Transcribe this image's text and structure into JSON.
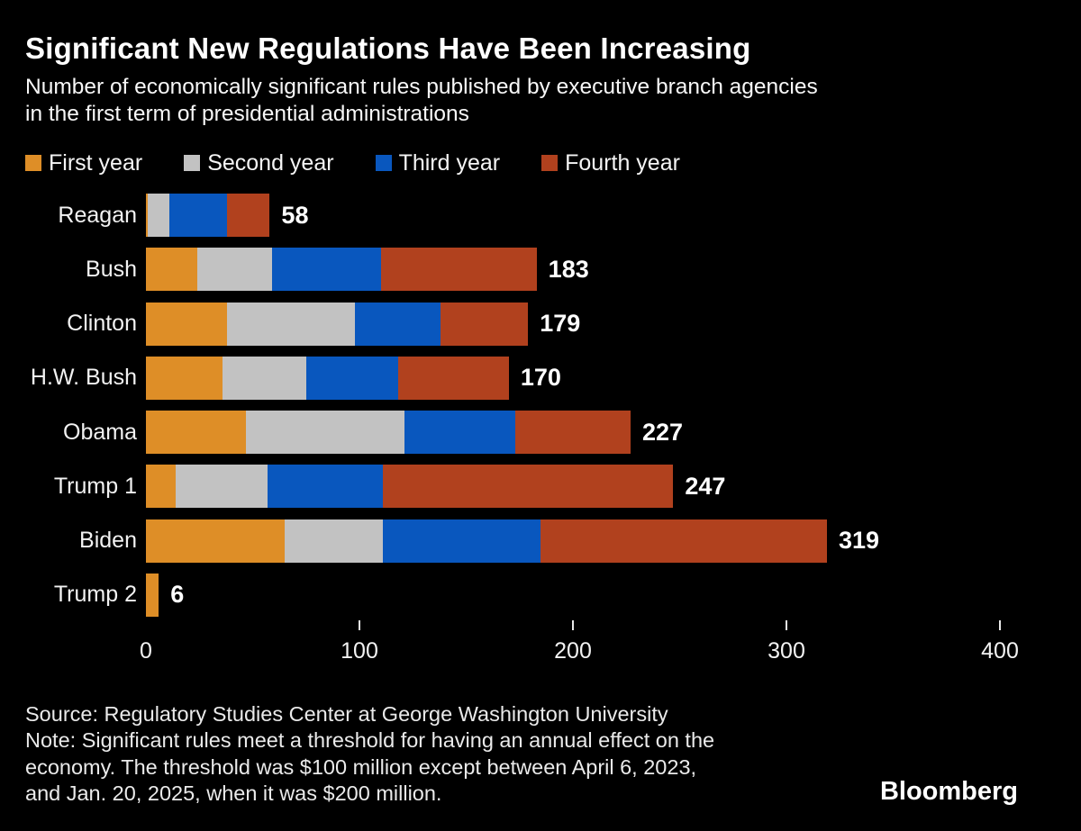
{
  "header": {
    "title": "Significant New Regulations Have Been Increasing",
    "subtitle": [
      "Number of economically significant rules published by executive branch agencies",
      "in the first term of presidential administrations"
    ]
  },
  "legend": [
    {
      "label": "First year",
      "color": "#de8e27"
    },
    {
      "label": "Second year",
      "color": "#c2c2c2"
    },
    {
      "label": "Third year",
      "color": "#0957be"
    },
    {
      "label": "Fourth year",
      "color": "#b1411e"
    }
  ],
  "chart_data": {
    "type": "bar",
    "orientation": "horizontal",
    "stacked": true,
    "title": "Significant New Regulations Have Been Increasing",
    "subtitle": "Number of economically significant rules published by executive branch agencies in the first term of presidential administrations",
    "categories": [
      "Reagan",
      "Bush",
      "Clinton",
      "H.W. Bush",
      "Obama",
      "Trump 1",
      "Biden",
      "Trump 2"
    ],
    "series": [
      {
        "name": "First year",
        "color": "#de8e27",
        "values": [
          1,
          24,
          38,
          36,
          47,
          14,
          65,
          6
        ]
      },
      {
        "name": "Second year",
        "color": "#c2c2c2",
        "values": [
          10,
          35,
          60,
          39,
          74,
          43,
          46,
          0
        ]
      },
      {
        "name": "Third year",
        "color": "#0957be",
        "values": [
          27,
          51,
          40,
          43,
          52,
          54,
          74,
          0
        ]
      },
      {
        "name": "Fourth year",
        "color": "#b1411e",
        "values": [
          20,
          73,
          41,
          52,
          54,
          136,
          134,
          0
        ]
      }
    ],
    "totals": [
      58,
      183,
      179,
      170,
      227,
      247,
      319,
      6
    ],
    "x_axis": {
      "ticks": [
        0,
        100,
        200,
        300,
        400
      ],
      "max": 400,
      "grid": false
    },
    "legend_position": "top",
    "value_labels": "end-of-bar"
  },
  "footer": {
    "source": "Source: Regulatory Studies Center at George Washington University",
    "note": [
      "Note: Significant rules meet a threshold for having an annual effect on the",
      "economy. The threshold was $100 million except between April 6, 2023,",
      "and Jan. 20, 2025, when it was $200 million."
    ],
    "brand": "Bloomberg"
  }
}
